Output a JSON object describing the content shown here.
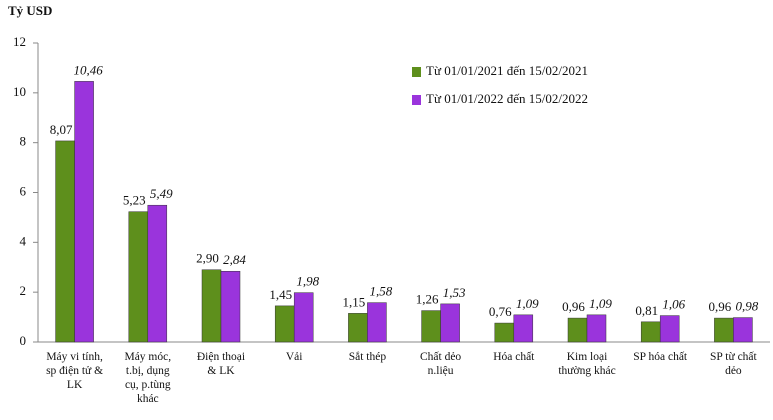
{
  "chart_data": {
    "type": "bar",
    "y_label": "Tỷ USD",
    "categories": [
      "Máy vi tính,\nsp điện tử &\nLK",
      "Máy móc,\nt.bị, dụng\ncụ, p.tùng\nkhác",
      "Điện thoại\n& LK",
      "Vải",
      "Sắt thép",
      "Chất dẻo\nn.liệu",
      "Hóa chất",
      "Kim loại\nthường khác",
      "SP hóa chất",
      "SP từ chất\ndẻo"
    ],
    "series": [
      {
        "name": "Từ 01/01/2021 đến 15/02/2021",
        "color": "#5e8f1c",
        "values": [
          8.07,
          5.23,
          2.9,
          1.45,
          1.15,
          1.26,
          0.76,
          0.96,
          0.81,
          0.96
        ],
        "value_labels": [
          "8,07",
          "5,23",
          "2,90",
          "1,45",
          "1,15",
          "1,26",
          "0,76",
          "0,96",
          "0,81",
          "0,96"
        ]
      },
      {
        "name": "Từ 01/01/2022 đến 15/02/2022",
        "color": "#9a34dc",
        "values": [
          10.46,
          5.49,
          2.84,
          1.98,
          1.58,
          1.53,
          1.09,
          1.09,
          1.06,
          0.98
        ],
        "value_labels": [
          "10,46",
          "5,49",
          "2,84",
          "1,98",
          "1,58",
          "1,53",
          "1,09",
          "1,09",
          "1,06",
          "0,98"
        ]
      }
    ],
    "ylim": [
      0,
      12
    ],
    "yticks": [
      0,
      2,
      4,
      6,
      8,
      10,
      12
    ],
    "grid": false
  }
}
